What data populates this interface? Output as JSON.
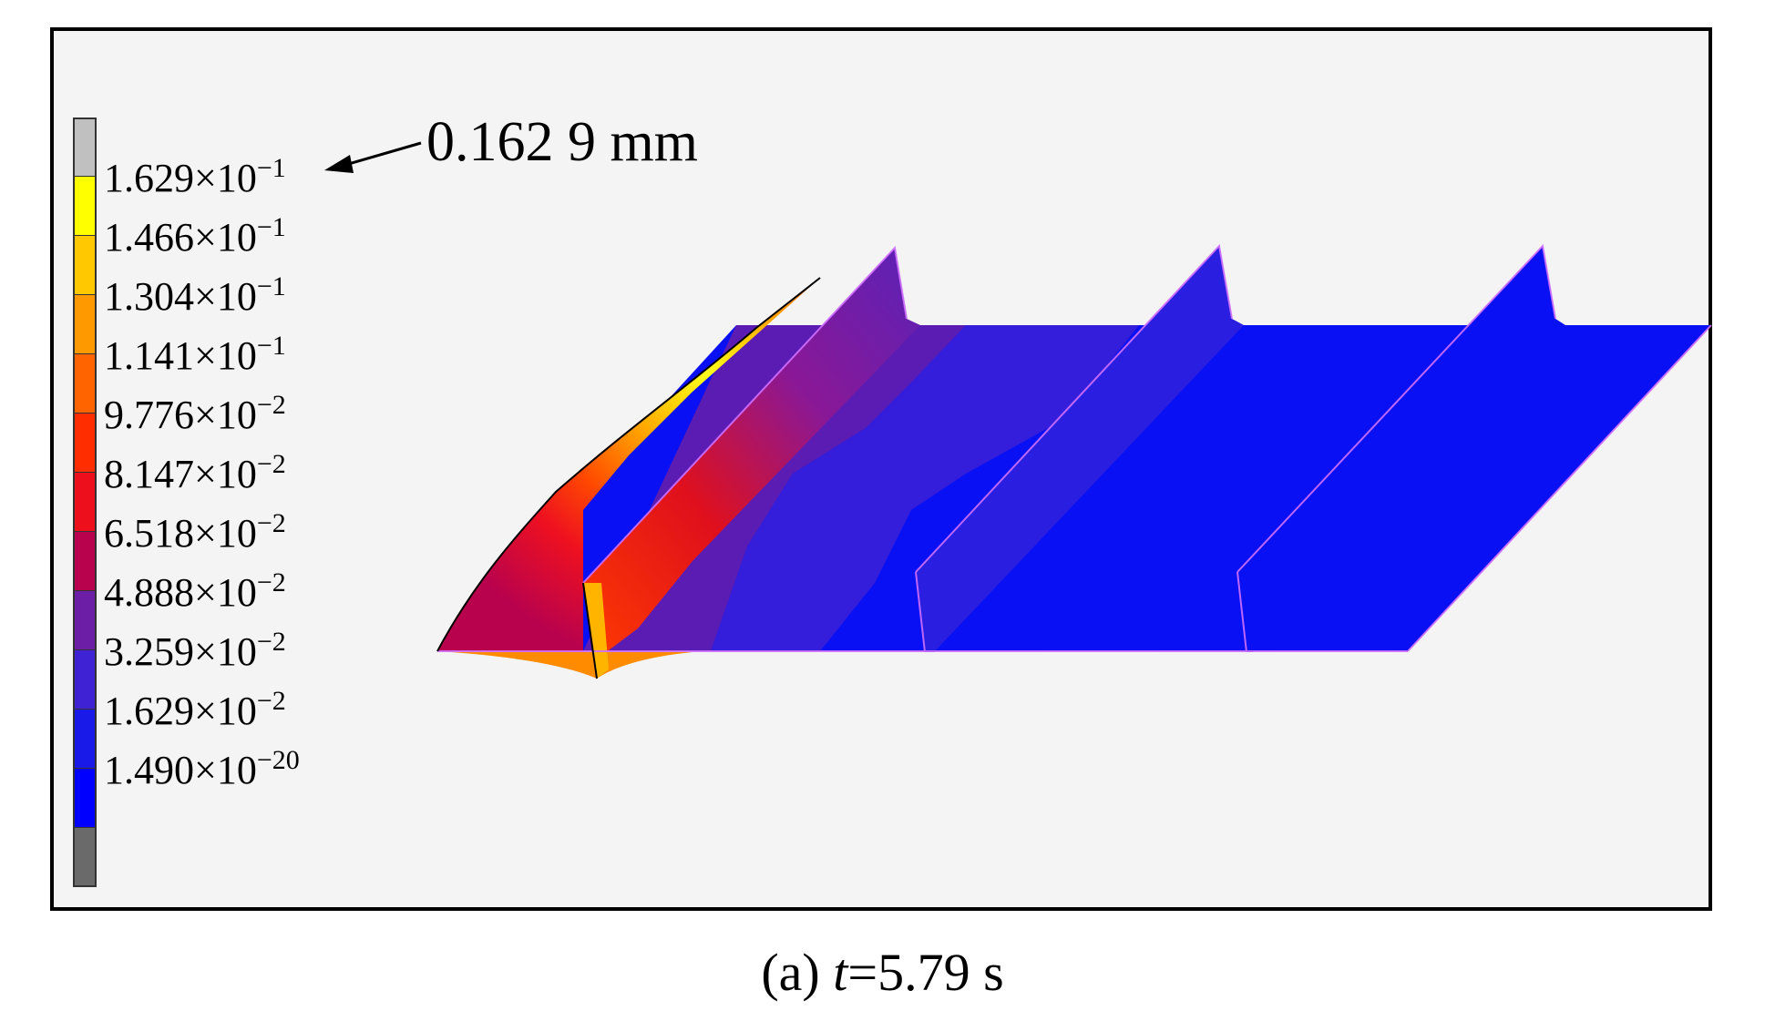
{
  "legend": {
    "colors": [
      "#c0c0c0",
      "#ffff00",
      "#ffc800",
      "#ff9900",
      "#ff6400",
      "#ff2d00",
      "#ee0f1c",
      "#b8024e",
      "#6c1ea6",
      "#3e22d4",
      "#1a1ae8",
      "#0000ff",
      "#6a6a6a"
    ],
    "labels": [
      {
        "mantissa": "1.629",
        "times": "×10",
        "exp": "−1"
      },
      {
        "mantissa": "1.466",
        "times": "×10",
        "exp": "−1"
      },
      {
        "mantissa": "1.304",
        "times": "×10",
        "exp": "−1"
      },
      {
        "mantissa": "1.141",
        "times": "×10",
        "exp": "−1"
      },
      {
        "mantissa": "9.776",
        "times": "×10",
        "exp": "−2"
      },
      {
        "mantissa": "8.147",
        "times": "×10",
        "exp": "−2"
      },
      {
        "mantissa": "6.518",
        "times": "×10",
        "exp": "−2"
      },
      {
        "mantissa": "4.888",
        "times": "×10",
        "exp": "−2"
      },
      {
        "mantissa": "3.259",
        "times": "×10",
        "exp": "−2"
      },
      {
        "mantissa": "1.629",
        "times": "×10",
        "exp": "−2"
      },
      {
        "mantissa": "1.490",
        "times": "×10",
        "exp": "−20"
      }
    ]
  },
  "annotation": {
    "max_value": "0.162 9 mm"
  },
  "caption": {
    "prefix": "(a) ",
    "var": "t",
    "suffix": "=5.79 s"
  }
}
